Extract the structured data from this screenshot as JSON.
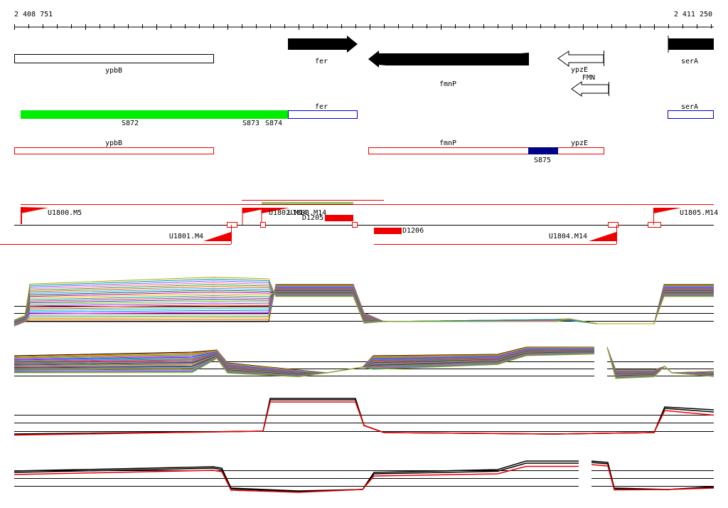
{
  "coords": {
    "start": "2 408 751",
    "end": "2 411 250"
  },
  "genes": {
    "ypbB": "ypbB",
    "fer": "fer",
    "fmnP": "fmnP",
    "ypzE": "ypzE",
    "FMN": "FMN",
    "serA": "serA"
  },
  "segments": {
    "S872": "S872",
    "S873": "S873",
    "S874": "S874",
    "S875": "S875"
  },
  "transcripts": {
    "U1800": "U1800.M5",
    "U1801": "U1801.M4",
    "U1802": "U1802.M14",
    "U1803": "U1803.M14",
    "U1804": "U1804.M14",
    "U1805": "U1805.M14"
  },
  "bars": {
    "D1205": "D1205",
    "D1206": "D1206"
  },
  "colors": {
    "feature_fill": "#000000",
    "segment_green": "#00ee00",
    "annotation_red": "#ee0000",
    "annotation_blue": "#0000cc",
    "segment_navy": "#000088",
    "expression_red": "#ee0000",
    "expression_black": "#000000"
  }
}
